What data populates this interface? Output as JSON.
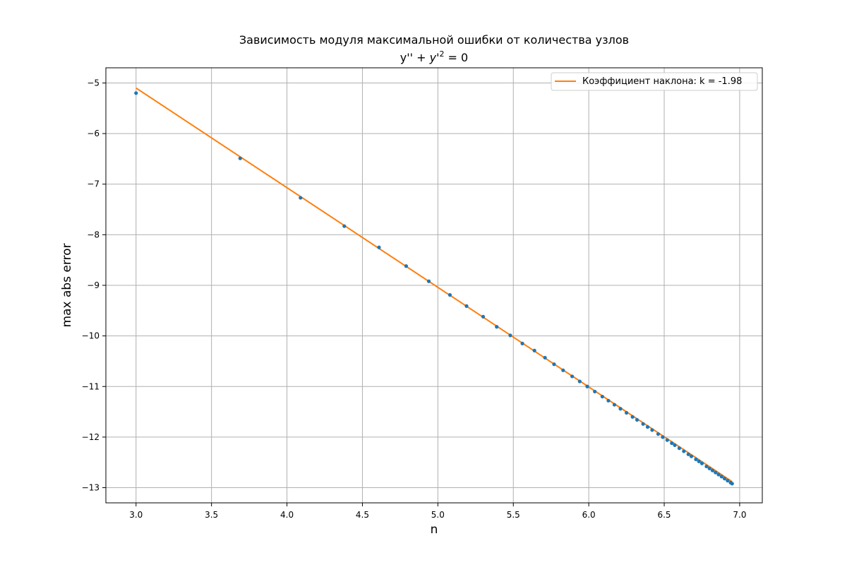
{
  "chart_data": {
    "type": "scatter",
    "title": "Зависимость модуля максимальной ошибки от количества узлов",
    "subtitle_parts": {
      "left": "y'' + ",
      "var": "y'",
      "exp": "2",
      "right": " = 0"
    },
    "xlabel": "n",
    "ylabel": "max abs  error",
    "xlim": [
      2.8,
      7.15
    ],
    "ylim": [
      -13.3,
      -4.7
    ],
    "xticks": [
      3.0,
      3.5,
      4.0,
      4.5,
      5.0,
      5.5,
      6.0,
      6.5,
      7.0
    ],
    "yticks": [
      -5,
      -6,
      -7,
      -8,
      -9,
      -10,
      -11,
      -12,
      -13
    ],
    "grid": true,
    "legend_position": "upper-right",
    "colors": {
      "points": "#1f77b4",
      "fit": "#ff7f0e",
      "grid": "#b0b0b0"
    },
    "series": [
      {
        "name": "",
        "kind": "points",
        "x": [
          3.0,
          3.69,
          4.09,
          4.38,
          4.61,
          4.79,
          4.94,
          5.08,
          5.19,
          5.3,
          5.39,
          5.48,
          5.56,
          5.64,
          5.71,
          5.77,
          5.83,
          5.89,
          5.94,
          5.99,
          6.04,
          6.09,
          6.13,
          6.17,
          6.21,
          6.25,
          6.29,
          6.32,
          6.36,
          6.39,
          6.42,
          6.46,
          6.49,
          6.52,
          6.55,
          6.57,
          6.6,
          6.63,
          6.66,
          6.68,
          6.71,
          6.73,
          6.75,
          6.78,
          6.8,
          6.82,
          6.84,
          6.86,
          6.88,
          6.9,
          6.92,
          6.94,
          6.95
        ],
        "y": [
          -5.2,
          -6.49,
          -7.27,
          -7.83,
          -8.25,
          -8.62,
          -8.92,
          -9.19,
          -9.41,
          -9.62,
          -9.82,
          -9.99,
          -10.15,
          -10.29,
          -10.43,
          -10.56,
          -10.68,
          -10.8,
          -10.9,
          -11.0,
          -11.1,
          -11.2,
          -11.28,
          -11.36,
          -11.44,
          -11.52,
          -11.6,
          -11.66,
          -11.74,
          -11.8,
          -11.86,
          -11.94,
          -12.0,
          -12.06,
          -12.12,
          -12.16,
          -12.22,
          -12.28,
          -12.34,
          -12.38,
          -12.44,
          -12.48,
          -12.52,
          -12.58,
          -12.62,
          -12.66,
          -12.7,
          -12.74,
          -12.78,
          -12.82,
          -12.86,
          -12.9,
          -12.92
        ]
      },
      {
        "name": "Коэффициент наклона: k = -1.98",
        "kind": "line",
        "x": [
          3.0,
          6.95
        ],
        "y": [
          -5.1,
          -12.88
        ]
      }
    ]
  }
}
